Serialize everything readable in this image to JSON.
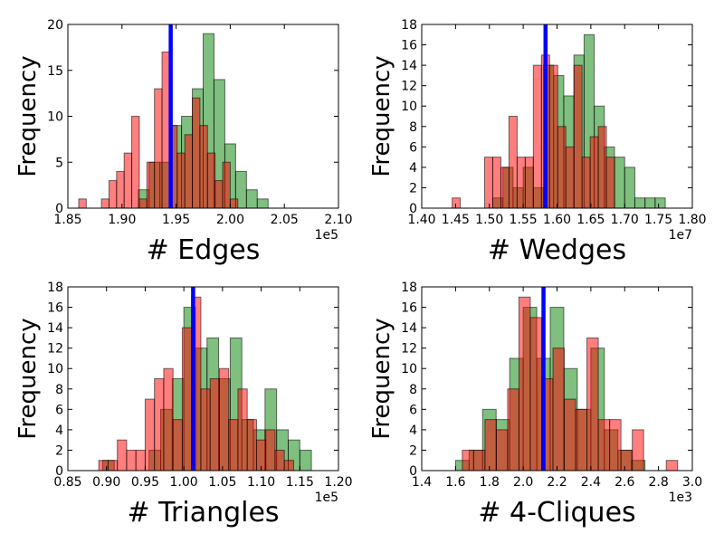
{
  "colors": {
    "green": "#008000",
    "red": "#ff0000",
    "vline": "#0000ff",
    "edge": "#000000"
  },
  "chart_data": [
    {
      "type": "bar",
      "title": "",
      "xlabel": "# Edges",
      "ylabel": "Frequency",
      "offset_label": "1e5",
      "xlim": [
        1.85,
        2.1
      ],
      "ylim": [
        0,
        20
      ],
      "xticks": [
        "1.85",
        "1.90",
        "1.95",
        "2.00",
        "2.05",
        "2.10"
      ],
      "yticks": [
        "0",
        "5",
        "10",
        "15",
        "20"
      ],
      "vline": 1.945,
      "series": [
        {
          "name": "green",
          "bin_edges": [
            1.915,
            1.925,
            1.935,
            1.945,
            1.955,
            1.965,
            1.975,
            1.985,
            1.995,
            2.005,
            2.015,
            2.025,
            2.035
          ],
          "counts": [
            2,
            5,
            5,
            9,
            10,
            13,
            19,
            14,
            7,
            4,
            2,
            1
          ]
        },
        {
          "name": "red",
          "bin_edges": [
            1.86,
            1.867,
            1.874,
            1.881,
            1.888,
            1.895,
            1.902,
            1.909,
            1.916,
            1.923,
            1.93,
            1.937,
            1.944,
            1.951,
            1.958,
            1.965,
            1.972,
            1.979,
            1.986,
            1.993,
            2.0,
            2.007
          ],
          "counts": [
            1,
            0,
            0,
            1,
            3,
            4,
            6,
            10,
            1,
            5,
            13,
            17,
            9,
            6,
            8,
            12,
            9,
            6,
            3,
            5,
            1
          ]
        }
      ]
    },
    {
      "type": "bar",
      "title": "",
      "xlabel": "# Wedges",
      "ylabel": "Frequency",
      "offset_label": "1e7",
      "xlim": [
        1.4,
        1.8
      ],
      "ylim": [
        0,
        18
      ],
      "xticks": [
        "1.40",
        "1.45",
        "1.50",
        "1.55",
        "1.60",
        "1.65",
        "1.70",
        "1.75",
        "1.80"
      ],
      "yticks": [
        "0",
        "2",
        "4",
        "6",
        "8",
        "10",
        "12",
        "14",
        "16",
        "18"
      ],
      "vline": 1.583,
      "series": [
        {
          "name": "green",
          "bin_edges": [
            1.505,
            1.52,
            1.535,
            1.55,
            1.565,
            1.58,
            1.595,
            1.61,
            1.625,
            1.64,
            1.655,
            1.67,
            1.685,
            1.7,
            1.715,
            1.73,
            1.745,
            1.76
          ],
          "counts": [
            1,
            4,
            2,
            4,
            2,
            14,
            13,
            11,
            15,
            17,
            10,
            6,
            5,
            4,
            1,
            1,
            1
          ]
        },
        {
          "name": "red",
          "bin_edges": [
            1.445,
            1.457,
            1.469,
            1.481,
            1.493,
            1.505,
            1.517,
            1.529,
            1.541,
            1.553,
            1.565,
            1.577,
            1.589,
            1.601,
            1.613,
            1.625,
            1.637,
            1.649,
            1.661,
            1.673,
            1.685
          ],
          "counts": [
            1,
            0,
            0,
            0,
            5,
            5,
            4,
            9,
            5,
            5,
            14,
            15,
            14,
            8,
            6,
            14,
            5,
            7,
            8,
            5
          ]
        }
      ]
    },
    {
      "type": "bar",
      "title": "",
      "xlabel": "# Triangles",
      "ylabel": "Frequency",
      "offset_label": "1e5",
      "xlim": [
        0.85,
        1.2
      ],
      "ylim": [
        0,
        18
      ],
      "xticks": [
        "0.85",
        "0.90",
        "0.95",
        "1.00",
        "1.05",
        "1.10",
        "1.15",
        "1.20"
      ],
      "yticks": [
        "0",
        "2",
        "4",
        "6",
        "8",
        "10",
        "12",
        "14",
        "16",
        "18"
      ],
      "vline": 1.012,
      "series": [
        {
          "name": "green",
          "bin_edges": [
            0.895,
            0.91,
            0.925,
            0.94,
            0.955,
            0.97,
            0.985,
            1.0,
            1.015,
            1.03,
            1.045,
            1.06,
            1.075,
            1.09,
            1.105,
            1.12,
            1.135,
            1.15,
            1.165
          ],
          "counts": [
            1,
            0,
            0,
            0,
            2,
            6,
            9,
            16,
            12,
            13,
            9,
            13,
            5,
            4,
            8,
            4,
            3,
            2
          ]
        },
        {
          "name": "red",
          "bin_edges": [
            0.89,
            0.902,
            0.914,
            0.926,
            0.938,
            0.95,
            0.962,
            0.974,
            0.986,
            0.998,
            1.01,
            1.022,
            1.034,
            1.046,
            1.058,
            1.07,
            1.082,
            1.094,
            1.106,
            1.118,
            1.13,
            1.142
          ],
          "counts": [
            1,
            1,
            3,
            2,
            2,
            7,
            9,
            10,
            5,
            14,
            17,
            8,
            9,
            10,
            5,
            8,
            5,
            3,
            4,
            2,
            1
          ]
        }
      ]
    },
    {
      "type": "bar",
      "title": "",
      "xlabel": "# 4-Cliques",
      "ylabel": "Frequency",
      "offset_label": "1e3",
      "xlim": [
        1.4,
        3.0
      ],
      "ylim": [
        0,
        18
      ],
      "xticks": [
        "1.4",
        "1.6",
        "1.8",
        "2.0",
        "2.2",
        "2.4",
        "2.6",
        "2.8",
        "3.0"
      ],
      "yticks": [
        "0",
        "2",
        "4",
        "6",
        "8",
        "10",
        "12",
        "14",
        "16",
        "18"
      ],
      "vline": 2.12,
      "series": [
        {
          "name": "green",
          "bin_edges": [
            1.6,
            1.68,
            1.76,
            1.84,
            1.92,
            2.0,
            2.08,
            2.16,
            2.24,
            2.32,
            2.4,
            2.48,
            2.56,
            2.64,
            2.72
          ],
          "counts": [
            1,
            2,
            6,
            5,
            11,
            16,
            11,
            16,
            10,
            6,
            12,
            4,
            2,
            1
          ]
        },
        {
          "name": "red",
          "bin_edges": [
            1.64,
            1.707,
            1.774,
            1.841,
            1.908,
            1.975,
            2.042,
            2.109,
            2.176,
            2.243,
            2.31,
            2.377,
            2.444,
            2.511,
            2.578,
            2.645,
            2.712,
            2.779,
            2.846,
            2.913
          ],
          "counts": [
            2,
            2,
            5,
            4,
            8,
            17,
            15,
            9,
            12,
            7,
            6,
            13,
            5,
            5,
            2,
            4,
            0,
            0,
            1
          ]
        }
      ]
    }
  ]
}
